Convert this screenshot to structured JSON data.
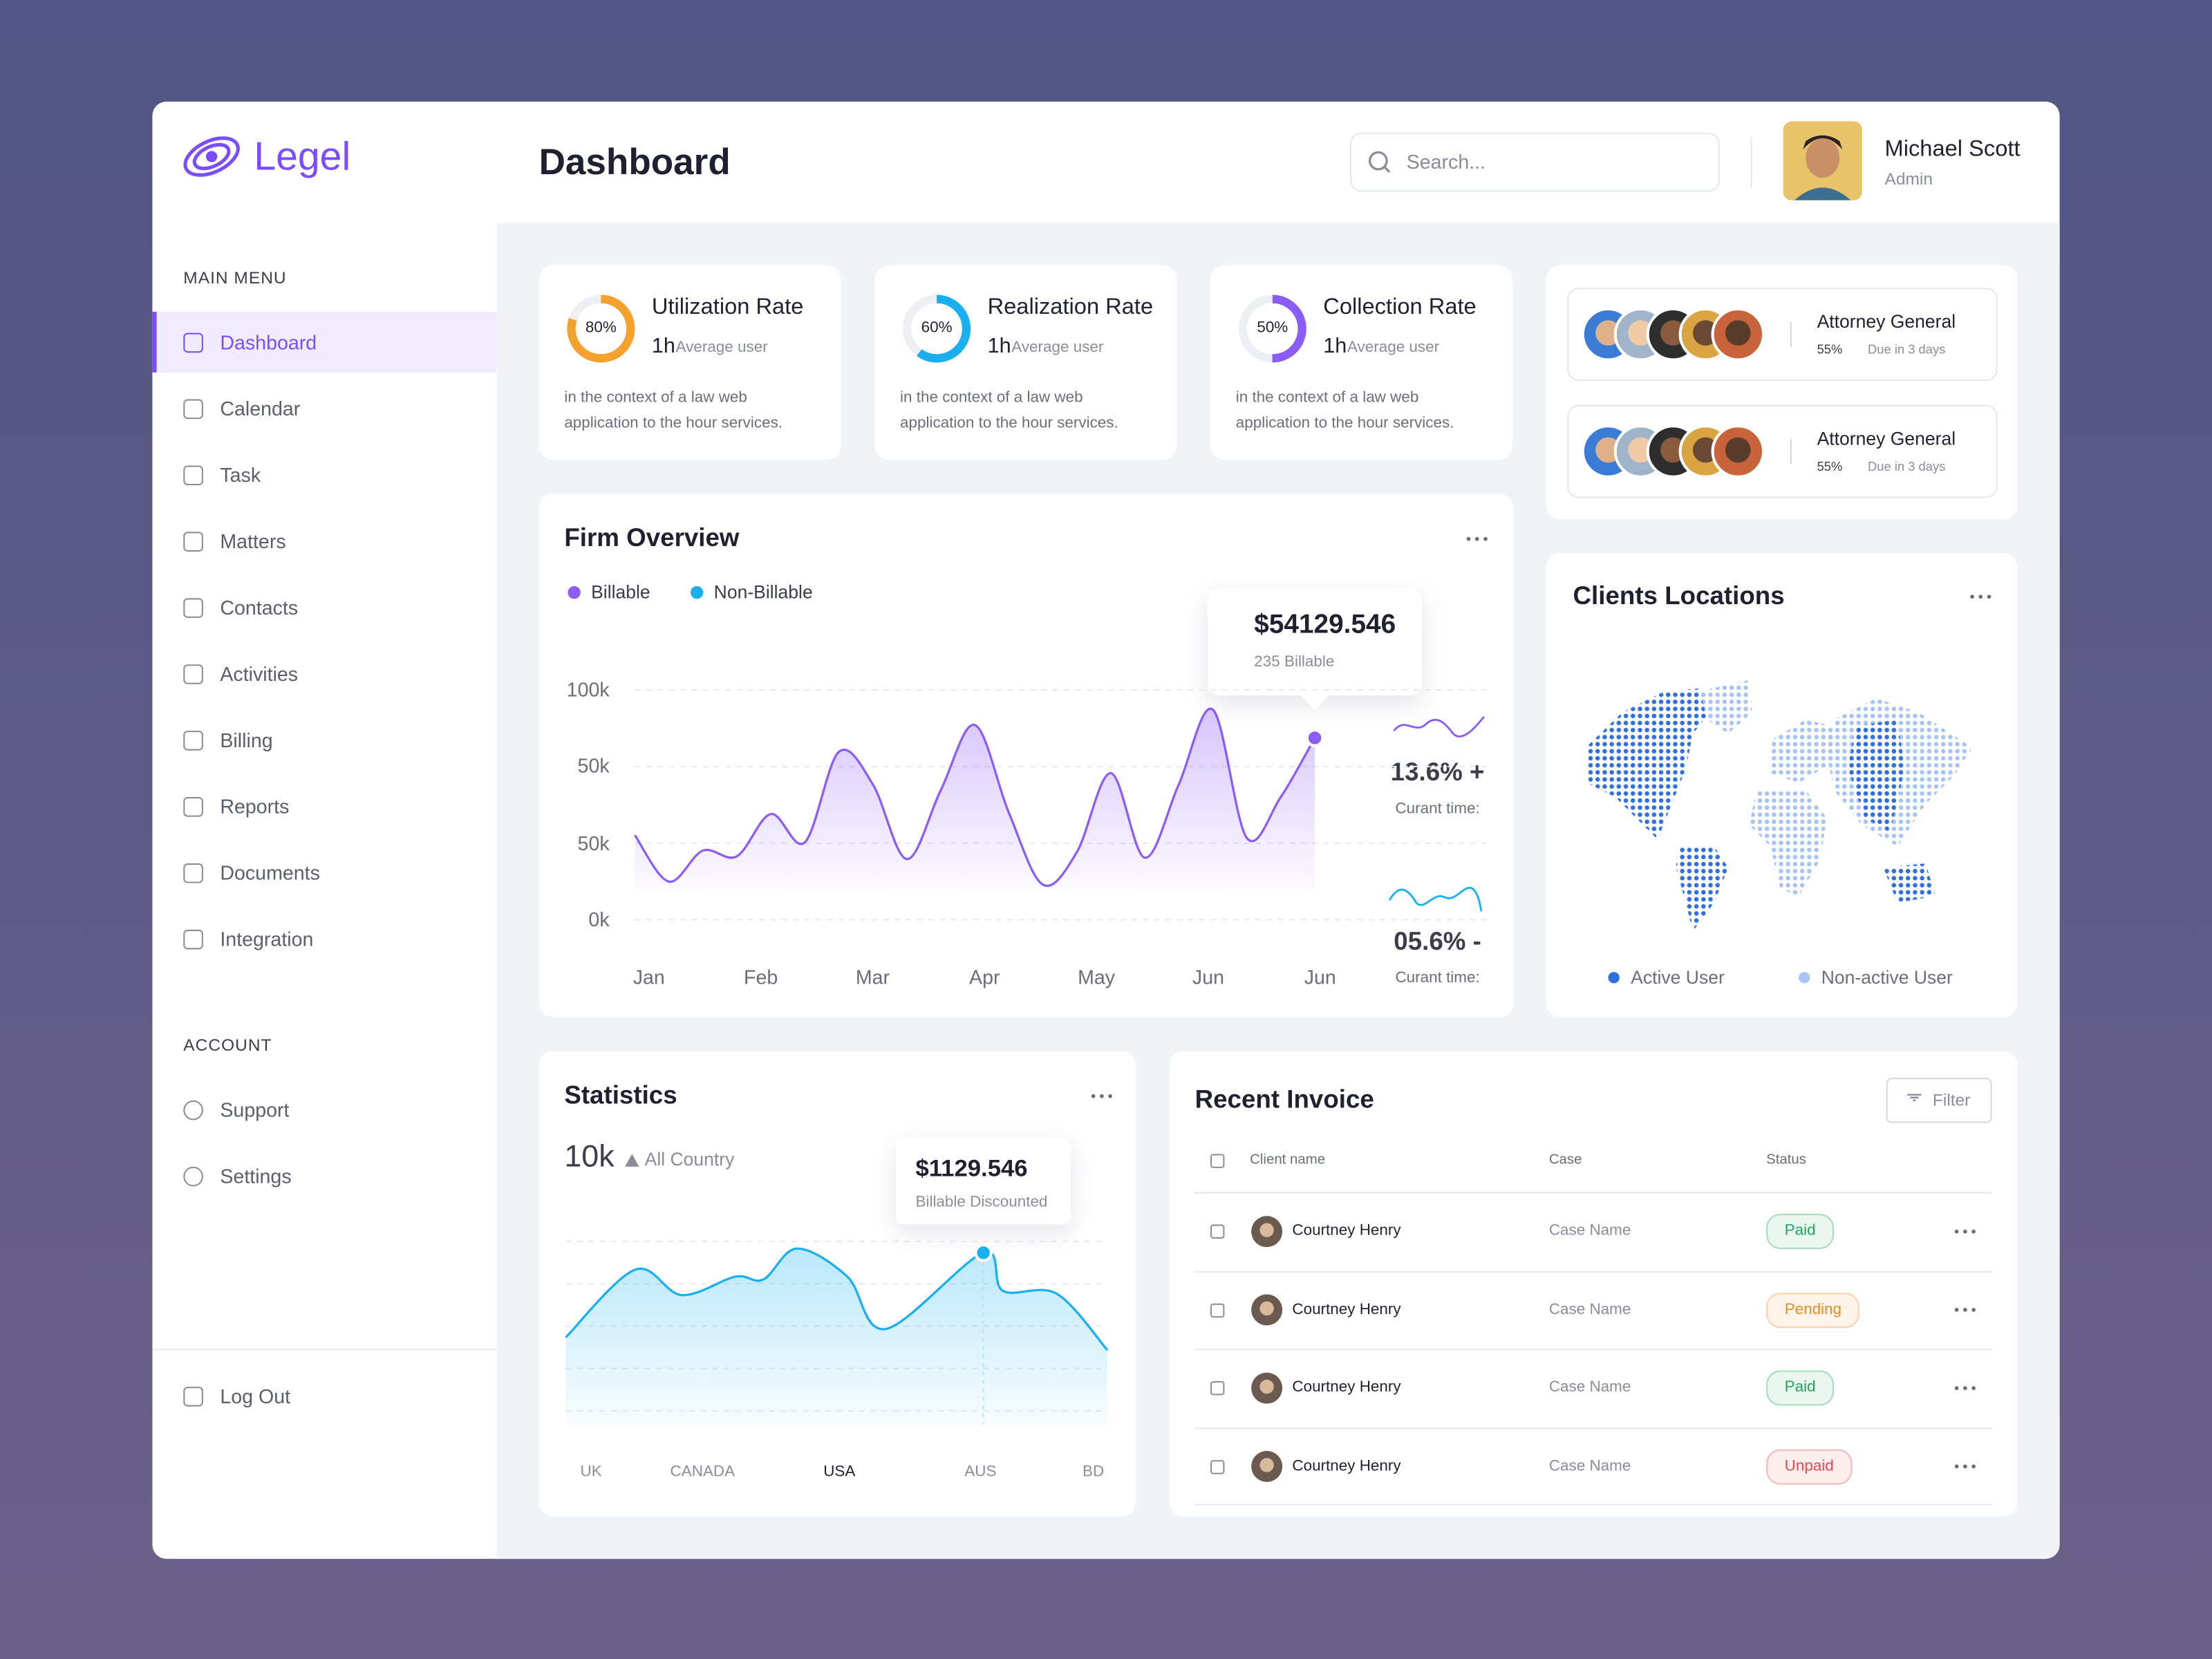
{
  "sidebar": {
    "logo": "Legel",
    "main_menu_title": "MAIN MENU",
    "main_menu": [
      "Dashboard",
      "Calendar",
      "Task",
      "Matters",
      "Contacts",
      "Activities",
      "Billing",
      "Reports",
      "Documents",
      "Integration"
    ],
    "account_title": "ACCOUNT",
    "account_menu": [
      "Support",
      "Settings"
    ],
    "logout": "Log Out"
  },
  "header": {
    "title": "Dashboard",
    "search_placeholder": "Search...",
    "user_name": "Michael Scott",
    "user_role": "Admin"
  },
  "rate_cards": [
    {
      "title": "Utilization Rate",
      "percent": 80,
      "percent_label": "80%",
      "duration": "1h",
      "duration_note": "Average user",
      "description": "in the context of a law web application to the hour services.",
      "color": "#f4a12e"
    },
    {
      "title": "Realization Rate",
      "percent": 60,
      "percent_label": "60%",
      "duration": "1h",
      "duration_note": "Average user",
      "description": "in the context of a law web application to the hour services.",
      "color": "#1ab0ef"
    },
    {
      "title": "Collection Rate",
      "percent": 50,
      "percent_label": "50%",
      "duration": "1h",
      "duration_note": "Average user",
      "description": "in the context of a law web application to the hour services.",
      "color": "#8b5cf6"
    }
  ],
  "attorney_cards": [
    {
      "title": "Attorney General",
      "percent_label": "55%",
      "due": "Due in 3 days"
    },
    {
      "title": "Attorney General",
      "percent_label": "55%",
      "due": "Due in 3 days"
    }
  ],
  "firm_overview": {
    "title": "Firm Overview",
    "legend": [
      {
        "name": "Billable",
        "color": "#8b5cf6"
      },
      {
        "name": "Non-Billable",
        "color": "#1ab0ef"
      }
    ],
    "y_labels": [
      "100k",
      "50k",
      "50k",
      "0k"
    ],
    "x_labels": [
      "Jan",
      "Feb",
      "Mar",
      "Apr",
      "May",
      "Jun",
      "Jun"
    ],
    "ylim": [
      0,
      100
    ],
    "values": [
      36.8,
      16.6,
      30.1,
      27.6,
      46,
      33.7,
      73,
      58.9,
      26.4,
      56.4,
      84.7,
      46.6,
      15.3,
      29.4,
      63.8,
      27,
      58.9,
      91.4,
      35.6,
      53.4,
      79.1
    ],
    "tooltip": {
      "value": "$54129.546",
      "note": "235 Billable"
    },
    "trends": [
      {
        "value": "13.6% +",
        "note": "Curant time:"
      },
      {
        "value": "05.6% -",
        "note": "Curant time:"
      }
    ]
  },
  "clients_locations": {
    "title": "Clients Locations",
    "legend": [
      {
        "name": "Active User",
        "color": "#2f6fe0"
      },
      {
        "name": "Non-active User",
        "color": "#a8c4f5"
      }
    ]
  },
  "statistics": {
    "title": "Statistics",
    "total": "10k",
    "scope": "All Country",
    "x_labels": [
      "UK",
      "CANADA",
      "USA",
      "AUS",
      "BD"
    ],
    "xlim": [
      0,
      100
    ],
    "ylim": [
      0,
      100
    ],
    "x": [
      0,
      12.8,
      21.4,
      31.3,
      36.5,
      42.7,
      52,
      59.1,
      77.1,
      80.7,
      90.6,
      100
    ],
    "values": [
      41.3,
      73.3,
      61.3,
      70,
      68.7,
      83.3,
      70,
      45.3,
      81.3,
      63.3,
      62,
      35.3
    ],
    "color": "#1ab0ef",
    "tooltip": {
      "value": "$1129.546",
      "note": "Billable Discounted"
    }
  },
  "recent_invoice": {
    "title": "Recent Invoice",
    "filter": "Filter",
    "columns": [
      "Client name",
      "Case",
      "Status"
    ],
    "rows": [
      {
        "client": "Courtney Henry",
        "case": "Case Name",
        "status": "Paid",
        "status_color": "#22a45d"
      },
      {
        "client": "Courtney Henry",
        "case": "Case Name",
        "status": "Pending",
        "status_color": "#f08a24"
      },
      {
        "client": "Courtney Henry",
        "case": "Case Name",
        "status": "Paid",
        "status_color": "#22a45d"
      },
      {
        "client": "Courtney Henry",
        "case": "Case Name",
        "status": "Unpaid",
        "status_color": "#e5484d"
      }
    ]
  }
}
